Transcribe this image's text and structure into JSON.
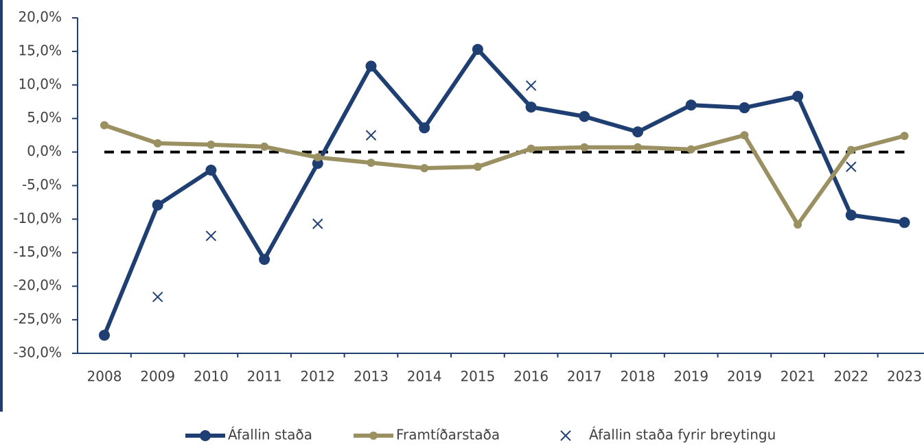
{
  "chart_data": {
    "type": "line",
    "categories": [
      "2008",
      "2009",
      "2010",
      "2011",
      "2012",
      "2013",
      "2014",
      "2015",
      "2016",
      "2017",
      "2018",
      "2019",
      "2019",
      "2021",
      "2022",
      "2023"
    ],
    "series": [
      {
        "name": "Áfallin staða",
        "color": "#1f3f73",
        "values": [
          -27.3,
          -7.9,
          -2.7,
          -16.0,
          -1.7,
          12.8,
          3.6,
          15.3,
          6.7,
          5.3,
          3.0,
          7.0,
          6.6,
          8.3,
          -9.4,
          -10.5
        ]
      },
      {
        "name": "Framtíðarstaða",
        "color": "#9b9061",
        "values": [
          4.0,
          1.3,
          1.1,
          0.8,
          -0.8,
          -1.6,
          -2.4,
          -2.2,
          0.5,
          0.7,
          0.7,
          0.4,
          2.5,
          -10.8,
          0.3,
          2.4
        ]
      },
      {
        "name": "Áfallin staða fyrir breytingu",
        "color": "#1f3f73",
        "marker_only": true,
        "values": [
          null,
          -21.6,
          -12.5,
          null,
          -10.7,
          2.5,
          null,
          null,
          9.9,
          null,
          null,
          null,
          null,
          null,
          -2.2,
          null
        ]
      }
    ],
    "ylim": [
      -30,
      20
    ],
    "yticks": [
      {
        "value": -30,
        "label": "-30,0%"
      },
      {
        "value": -25,
        "label": "-25,0%"
      },
      {
        "value": -20,
        "label": "-20,0%"
      },
      {
        "value": -15,
        "label": "-15,0%"
      },
      {
        "value": -10,
        "label": "-10,0%"
      },
      {
        "value": -5,
        "label": "-5,0%"
      },
      {
        "value": 0,
        "label": "0,0%"
      },
      {
        "value": 5,
        "label": "5,0%"
      },
      {
        "value": 10,
        "label": "10,0%"
      },
      {
        "value": 15,
        "label": "15,0%"
      },
      {
        "value": 20,
        "label": "20,0%"
      }
    ],
    "zero_line": true,
    "legend": "bottom"
  }
}
